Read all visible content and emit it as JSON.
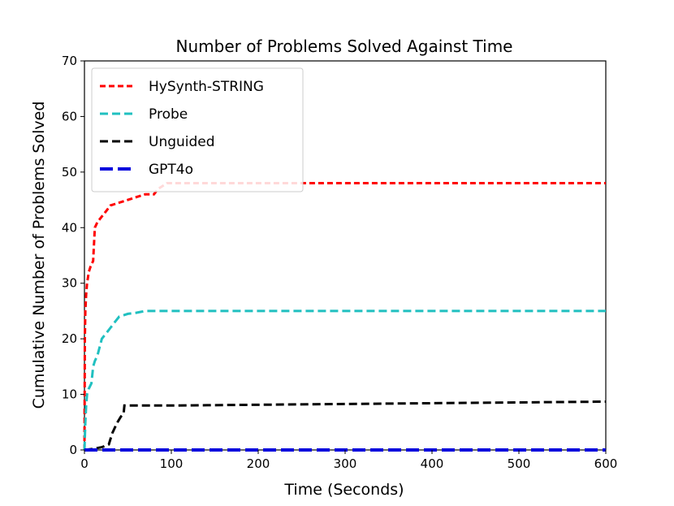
{
  "chart_data": {
    "type": "line",
    "title": "Number of Problems Solved Against Time",
    "xlabel": "Time (Seconds)",
    "ylabel": "Cumulative Number of Problems Solved",
    "xlim": [
      0,
      600
    ],
    "ylim": [
      0,
      70
    ],
    "xticks": [
      0,
      100,
      200,
      300,
      400,
      500,
      600
    ],
    "yticks": [
      0,
      10,
      20,
      30,
      40,
      50,
      60,
      70
    ],
    "grid": false,
    "legend_position": "top-left",
    "series": [
      {
        "name": "HySynth-STRING",
        "color": "#ff0000",
        "dash": "short",
        "x": [
          0,
          0.5,
          1,
          2,
          3,
          4,
          5,
          7,
          10,
          12,
          15,
          20,
          25,
          30,
          40,
          50,
          60,
          70,
          80,
          85,
          90,
          95,
          100,
          110,
          600
        ],
        "y": [
          0,
          20,
          25,
          28,
          30,
          31,
          32,
          33,
          34,
          40,
          41,
          42,
          43,
          44,
          44.5,
          45,
          45.5,
          46,
          46,
          47,
          47.5,
          48,
          48,
          48,
          48
        ]
      },
      {
        "name": "Probe",
        "color": "#20c0c0",
        "dash": "medium",
        "x": [
          0,
          1,
          2,
          3,
          5,
          8,
          10,
          12,
          15,
          20,
          25,
          30,
          35,
          40,
          50,
          60,
          70,
          80,
          600
        ],
        "y": [
          0,
          5,
          8,
          10,
          11,
          12,
          15,
          16,
          17,
          20,
          21,
          22,
          23,
          24,
          24.5,
          24.7,
          25,
          25,
          25
        ]
      },
      {
        "name": "Unguided",
        "color": "#000000",
        "dash": "medium",
        "x": [
          0,
          10,
          20,
          28,
          32,
          35,
          38,
          42,
          45,
          46,
          100,
          600
        ],
        "y": [
          0,
          0.2,
          0.5,
          1,
          3,
          4,
          5,
          6,
          6.5,
          8,
          8,
          8.7
        ]
      },
      {
        "name": "GPT4o",
        "color": "#0000dd",
        "dash": "long",
        "x": [
          0,
          600
        ],
        "y": [
          0,
          0
        ]
      }
    ]
  }
}
